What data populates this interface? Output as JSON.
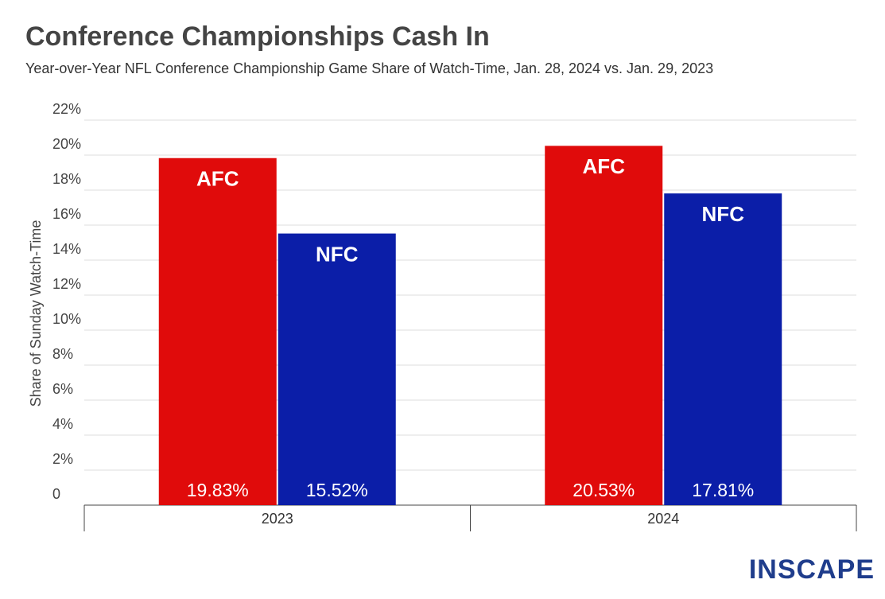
{
  "chart_data": {
    "type": "bar",
    "title": "Conference Championships Cash In",
    "subtitle": "Year-over-Year NFL Conference Championship Game Share of Watch-Time, Jan. 28, 2024 vs. Jan. 29, 2023",
    "y_label": "Share of Sunday Watch-Time",
    "brand": "INSCAPE",
    "categories": [
      "2023",
      "2024"
    ],
    "series": [
      {
        "name": "AFC",
        "color": "#e00b0b",
        "values": [
          19.83,
          20.53
        ],
        "value_labels": [
          "19.83%",
          "20.53%"
        ]
      },
      {
        "name": "NFC",
        "color": "#0b1ea8",
        "values": [
          15.52,
          17.81
        ],
        "value_labels": [
          "15.52%",
          "17.81%"
        ]
      }
    ],
    "ylim": [
      0,
      22
    ],
    "yticks": [
      0,
      {
        "value": 2,
        "label": "2%"
      },
      {
        "value": 4,
        "label": "4%"
      },
      {
        "value": 6,
        "label": "6%"
      },
      {
        "value": 8,
        "label": "8%"
      },
      {
        "value": 10,
        "label": "10%"
      },
      {
        "value": 12,
        "label": "12%"
      },
      {
        "value": 14,
        "label": "14%"
      },
      {
        "value": 16,
        "label": "16%"
      },
      {
        "value": 18,
        "label": "18%"
      },
      {
        "value": 20,
        "label": "20%"
      },
      {
        "value": 22,
        "label": "22%"
      }
    ],
    "grid": true
  }
}
